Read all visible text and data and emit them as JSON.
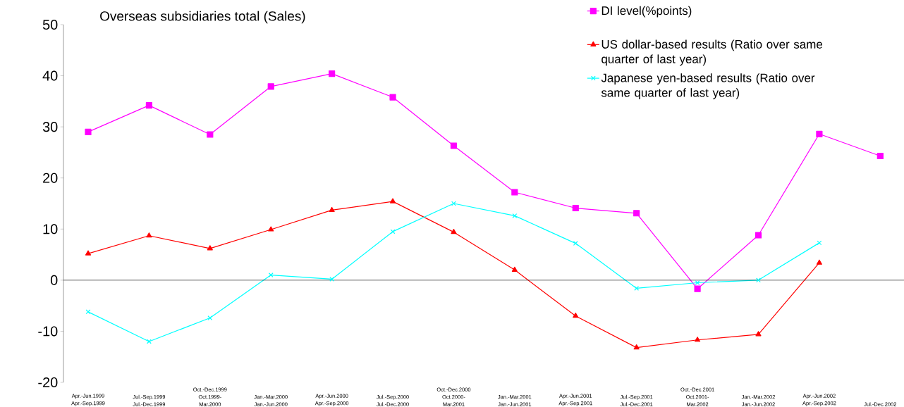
{
  "chart_data": {
    "type": "line",
    "title": "Overseas subsidiaries total (Sales)",
    "categories": [
      "Apr.-Jun.1999 Apr.-Sep.1999",
      "Jul.-Sep.1999 Jul.-Dec.1999",
      "Oct.-Dec.1999 Oct.1999-Mar.2000",
      "Jan.-Mar.2000 Jan.-Jun.2000",
      "Apr.-Jun.2000 Apr.-Sep.2000",
      "Jul.-Sep.2000 Jul.-Dec.2000",
      "Oct.-Dec.2000 Oct.2000-Mar.2001",
      "Jan.-Mar.2001 Jan.-Jun.2001",
      "Apr.-Jun.2001 Apr.-Sep.2001",
      "Jul.-Sep.2001 Jul.-Dec.2001",
      "Oct.-Dec.2001 Oct.2001-Mar.2002",
      "Jan.-Mar.2002 Jan.-Jun.2002",
      "Apr.-Jun.2002 Apr.-Sep.2002",
      "Jul.-Dec.2002"
    ],
    "series": [
      {
        "name": "DI level(%points)",
        "color": "#ff00ff",
        "marker": "square",
        "values": [
          29.0,
          34.2,
          28.5,
          37.9,
          40.4,
          35.8,
          26.3,
          17.2,
          14.1,
          13.1,
          -1.7,
          8.8,
          28.6,
          24.3
        ]
      },
      {
        "name": "US dollar-based results (Ratio over same quarter of last year)",
        "color": "#ff0000",
        "marker": "triangle",
        "values": [
          5.2,
          8.7,
          6.2,
          9.9,
          13.7,
          15.4,
          9.4,
          2.0,
          -7.0,
          -13.2,
          -11.7,
          -10.6,
          3.4,
          null
        ]
      },
      {
        "name": "Japanese yen-based results (Ratio over same quarter of last year)",
        "color": "#00ffff",
        "marker": "cross",
        "values": [
          -6.2,
          -12.0,
          -7.4,
          1.0,
          0.2,
          9.5,
          15.0,
          12.6,
          7.2,
          -1.6,
          -0.5,
          0.0,
          7.3,
          null
        ]
      }
    ],
    "ref_lines": [
      {
        "axis": "y",
        "value": 0,
        "color": "#000000"
      }
    ],
    "ylim": [
      -20,
      50
    ],
    "yticks": [
      -20,
      -10,
      0,
      10,
      20,
      30,
      40,
      50
    ],
    "grid": false,
    "legend": "top right",
    "line_style": "solid"
  }
}
